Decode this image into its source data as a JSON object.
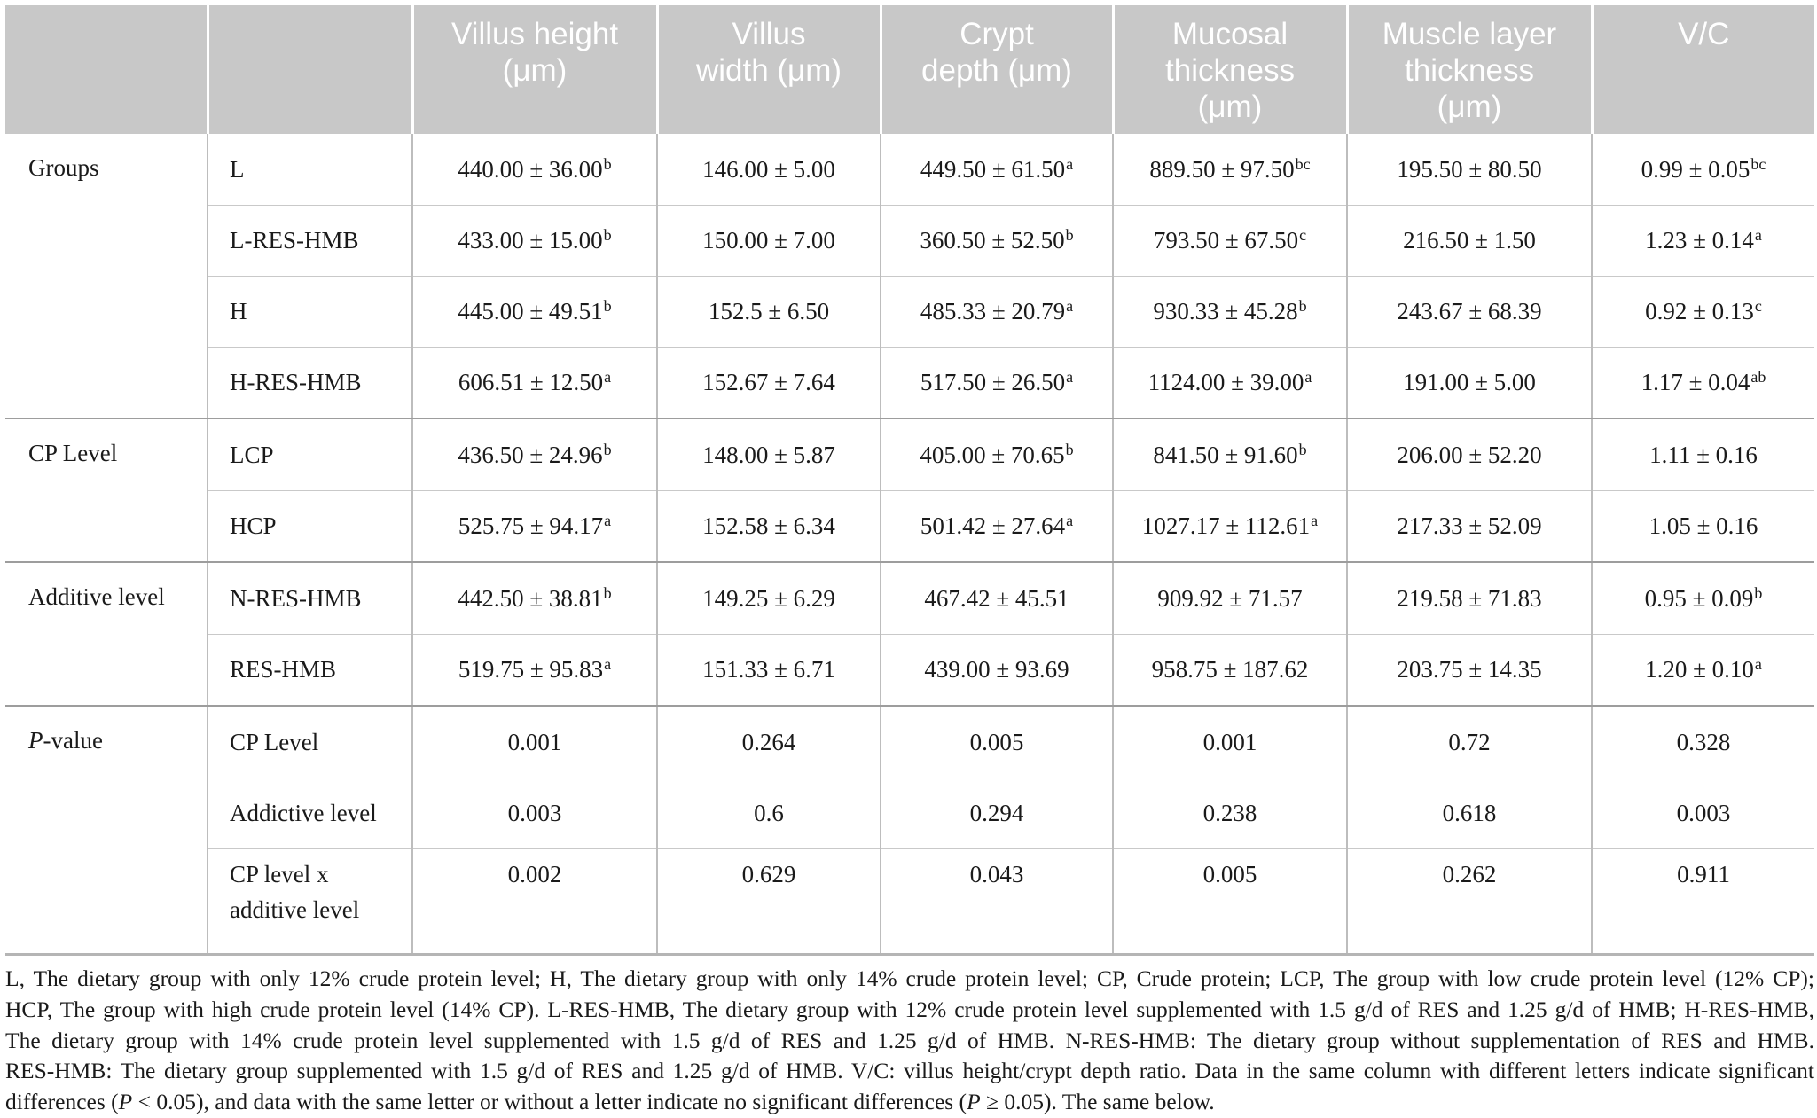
{
  "header": {
    "c0": "",
    "c1": "",
    "c2": [
      "Villus height",
      "(μm)"
    ],
    "c3": [
      "Villus",
      "width (μm)"
    ],
    "c4": [
      "Crypt",
      "depth (μm)"
    ],
    "c5": [
      "Mucosal",
      "thickness",
      "(μm)"
    ],
    "c6": [
      "Muscle layer",
      "thickness",
      "(μm)"
    ],
    "c7": [
      "V/C"
    ]
  },
  "rows": [
    {
      "group": "Groups",
      "label": "L",
      "vals": [
        [
          "440.00 ± 36.00",
          "b"
        ],
        [
          "146.00 ± 5.00",
          ""
        ],
        [
          "449.50 ± 61.50",
          "a"
        ],
        [
          "889.50 ± 97.50",
          "bc"
        ],
        [
          "195.50 ± 80.50",
          ""
        ],
        [
          "0.99 ± 0.05",
          "bc"
        ]
      ]
    },
    {
      "group": "",
      "label": "L-RES-HMB",
      "vals": [
        [
          "433.00 ± 15.00",
          "b"
        ],
        [
          "150.00 ± 7.00",
          ""
        ],
        [
          "360.50 ± 52.50",
          "b"
        ],
        [
          "793.50 ± 67.50",
          "c"
        ],
        [
          "216.50 ± 1.50",
          ""
        ],
        [
          "1.23 ± 0.14",
          "a"
        ]
      ]
    },
    {
      "group": "",
      "label": "H",
      "vals": [
        [
          "445.00 ± 49.51",
          "b"
        ],
        [
          "152.5 ± 6.50",
          ""
        ],
        [
          "485.33 ± 20.79",
          "a"
        ],
        [
          "930.33 ± 45.28",
          "b"
        ],
        [
          "243.67 ± 68.39",
          ""
        ],
        [
          "0.92 ± 0.13",
          "c"
        ]
      ]
    },
    {
      "group": "",
      "label": "H-RES-HMB",
      "vals": [
        [
          "606.51 ± 12.50",
          "a"
        ],
        [
          "152.67 ± 7.64",
          ""
        ],
        [
          "517.50 ± 26.50",
          "a"
        ],
        [
          "1124.00 ± 39.00",
          "a"
        ],
        [
          "191.00 ± 5.00",
          ""
        ],
        [
          "1.17 ± 0.04",
          "ab"
        ]
      ]
    },
    {
      "group": "CP Level",
      "label": "LCP",
      "vals": [
        [
          "436.50 ± 24.96",
          "b"
        ],
        [
          "148.00 ± 5.87",
          ""
        ],
        [
          "405.00 ± 70.65",
          "b"
        ],
        [
          "841.50 ± 91.60",
          "b"
        ],
        [
          "206.00 ± 52.20",
          ""
        ],
        [
          "1.11 ± 0.16",
          ""
        ]
      ]
    },
    {
      "group": "",
      "label": "HCP",
      "vals": [
        [
          "525.75 ± 94.17",
          "a"
        ],
        [
          "152.58 ± 6.34",
          ""
        ],
        [
          "501.42 ± 27.64",
          "a"
        ],
        [
          "1027.17 ± 112.61",
          "a"
        ],
        [
          "217.33 ± 52.09",
          ""
        ],
        [
          "1.05 ± 0.16",
          ""
        ]
      ]
    },
    {
      "group": "Additive level",
      "label": "N-RES-HMB",
      "vals": [
        [
          "442.50 ± 38.81",
          "b"
        ],
        [
          "149.25 ± 6.29",
          ""
        ],
        [
          "467.42 ± 45.51",
          ""
        ],
        [
          "909.92 ± 71.57",
          ""
        ],
        [
          "219.58 ± 71.83",
          ""
        ],
        [
          "0.95 ± 0.09",
          "b"
        ]
      ]
    },
    {
      "group": "",
      "label": "RES-HMB",
      "vals": [
        [
          "519.75 ± 95.83",
          "a"
        ],
        [
          "151.33 ± 6.71",
          ""
        ],
        [
          "439.00 ± 93.69",
          ""
        ],
        [
          "958.75 ± 187.62",
          ""
        ],
        [
          "203.75 ± 14.35",
          ""
        ],
        [
          "1.20 ± 0.10",
          "a"
        ]
      ]
    },
    {
      "group_italic": "P",
      "group_rest": "-value",
      "label": "CP Level",
      "vals": [
        [
          "0.001",
          ""
        ],
        [
          "0.264",
          ""
        ],
        [
          "0.005",
          ""
        ],
        [
          "0.001",
          ""
        ],
        [
          "0.72",
          ""
        ],
        [
          "0.328",
          ""
        ]
      ]
    },
    {
      "group": "",
      "label": "Addictive level",
      "vals": [
        [
          "0.003",
          ""
        ],
        [
          "0.6",
          ""
        ],
        [
          "0.294",
          ""
        ],
        [
          "0.238",
          ""
        ],
        [
          "0.618",
          ""
        ],
        [
          "0.003",
          ""
        ]
      ]
    },
    {
      "group": "",
      "label": "CP level x additive level",
      "vals": [
        [
          "0.002",
          ""
        ],
        [
          "0.629",
          ""
        ],
        [
          "0.043",
          ""
        ],
        [
          "0.005",
          ""
        ],
        [
          "0.262",
          ""
        ],
        [
          "0.911",
          ""
        ]
      ]
    }
  ],
  "footnote": [
    "L, The dietary group with only 12% crude protein level; H, The dietary group with only 14% crude protein level; CP, Crude protein; LCP, The group with low crude protein level (12% CP);",
    "HCP, The group with high crude protein level (14% CP). L-RES-HMB, The dietary group with 12% crude protein level supplemented with 1.5 g/d of RES and 1.25 g/d of HMB; H-RES-HMB,",
    "The dietary group with 14% crude protein level supplemented with 1.5 g/d of RES and 1.25 g/d of HMB. N-RES-HMB: The dietary group without supplementation of RES and HMB.",
    "RES-HMB: The dietary group supplemented with 1.5 g/d of RES and 1.25 g/d of HMB. V/C: villus height/crypt depth ratio. Data in the same column with different letters indicate significant",
    "differences (P < 0.05), and data with the same letter or without a letter indicate no significant differences (P ≥ 0.05). The same below."
  ]
}
